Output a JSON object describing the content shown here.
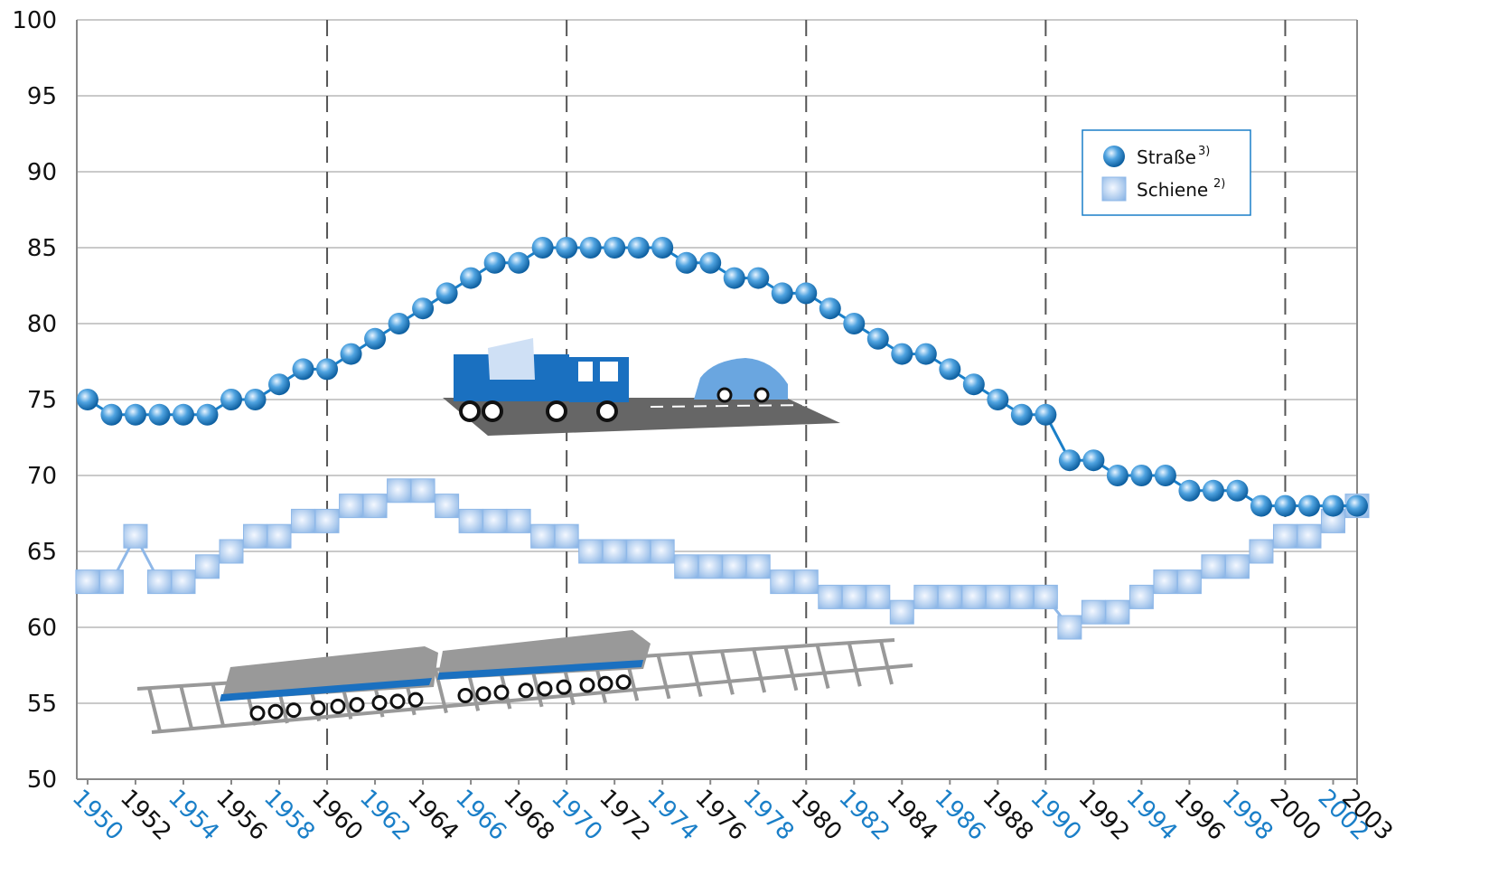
{
  "chart_data": {
    "type": "line",
    "x": [
      1950,
      1951,
      1952,
      1953,
      1954,
      1955,
      1956,
      1957,
      1958,
      1959,
      1960,
      1961,
      1962,
      1963,
      1964,
      1965,
      1966,
      1967,
      1968,
      1969,
      1970,
      1971,
      1972,
      1973,
      1974,
      1975,
      1976,
      1977,
      1978,
      1979,
      1980,
      1981,
      1982,
      1983,
      1984,
      1985,
      1986,
      1987,
      1988,
      1989,
      1990,
      1991,
      1992,
      1993,
      1994,
      1995,
      1996,
      1997,
      1998,
      1999,
      2000,
      2001,
      2002,
      2003
    ],
    "series": [
      {
        "name": "Straße",
        "note": "3)",
        "color": "#1a7fc8",
        "marker": "circle",
        "values": [
          75,
          74,
          74,
          74,
          74,
          74,
          75,
          75,
          76,
          77,
          77,
          78,
          79,
          80,
          81,
          82,
          83,
          84,
          84,
          85,
          85,
          85,
          85,
          85,
          85,
          84,
          84,
          83,
          83,
          82,
          82,
          81,
          80,
          79,
          78,
          78,
          77,
          76,
          75,
          74,
          74,
          71,
          71,
          70,
          70,
          70,
          69,
          69,
          69,
          68,
          68,
          68,
          68,
          68
        ]
      },
      {
        "name": "Schiene",
        "note": "2)",
        "color": "#8fb8e8",
        "marker": "square",
        "values": [
          63,
          63,
          66,
          63,
          63,
          64,
          65,
          66,
          66,
          67,
          67,
          68,
          68,
          69,
          69,
          68,
          67,
          67,
          67,
          66,
          66,
          65,
          65,
          65,
          65,
          64,
          64,
          64,
          64,
          63,
          63,
          62,
          62,
          62,
          61,
          62,
          62,
          62,
          62,
          62,
          62,
          60,
          61,
          61,
          62,
          63,
          63,
          64,
          64,
          65,
          66,
          66,
          67,
          68
        ]
      }
    ],
    "xlim": [
      1949.55,
      2003
    ],
    "xticks": [
      1950,
      1952,
      1954,
      1956,
      1958,
      1960,
      1962,
      1964,
      1966,
      1968,
      1970,
      1972,
      1974,
      1976,
      1978,
      1980,
      1982,
      1984,
      1986,
      1988,
      1990,
      1992,
      1994,
      1996,
      1998,
      2000,
      2002,
      2003
    ],
    "x_gridlines": [
      1960,
      1970,
      1980,
      1990,
      2000
    ],
    "ylim": [
      50,
      100
    ],
    "yticks": [
      50,
      55,
      60,
      65,
      70,
      75,
      80,
      85,
      90,
      95,
      100
    ],
    "grid": true
  }
}
